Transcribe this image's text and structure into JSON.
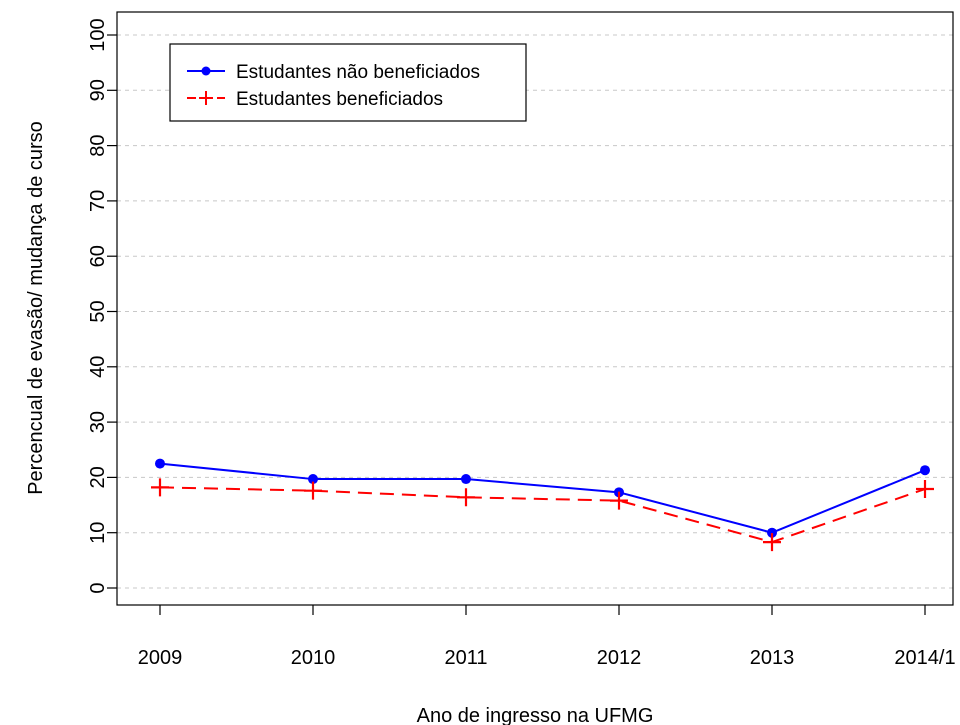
{
  "chart_data": {
    "type": "line",
    "title": "",
    "xlabel": "Ano de ingresso na UFMG",
    "ylabel": "Percencual de evasão/ mudança de curso",
    "categories": [
      "2009",
      "2010",
      "2011",
      "2012",
      "2013",
      "2014/1"
    ],
    "yticks": [
      "0",
      "10",
      "20",
      "30",
      "40",
      "50",
      "60",
      "70",
      "80",
      "90",
      "100"
    ],
    "ylim": [
      0,
      100
    ],
    "grid": "horizontal dashed",
    "legend_position": "top-left",
    "series": [
      {
        "name": "Estudantes não beneficiados",
        "values": [
          22.5,
          19.7,
          19.7,
          17.3,
          10.0,
          21.3
        ],
        "color": "#0000ff",
        "line_style": "solid",
        "marker": "dot"
      },
      {
        "name": "Estudantes beneficiados",
        "values": [
          18.2,
          17.6,
          16.4,
          15.8,
          8.3,
          17.9
        ],
        "color": "#ff0000",
        "line_style": "dashed",
        "marker": "plus"
      }
    ]
  }
}
